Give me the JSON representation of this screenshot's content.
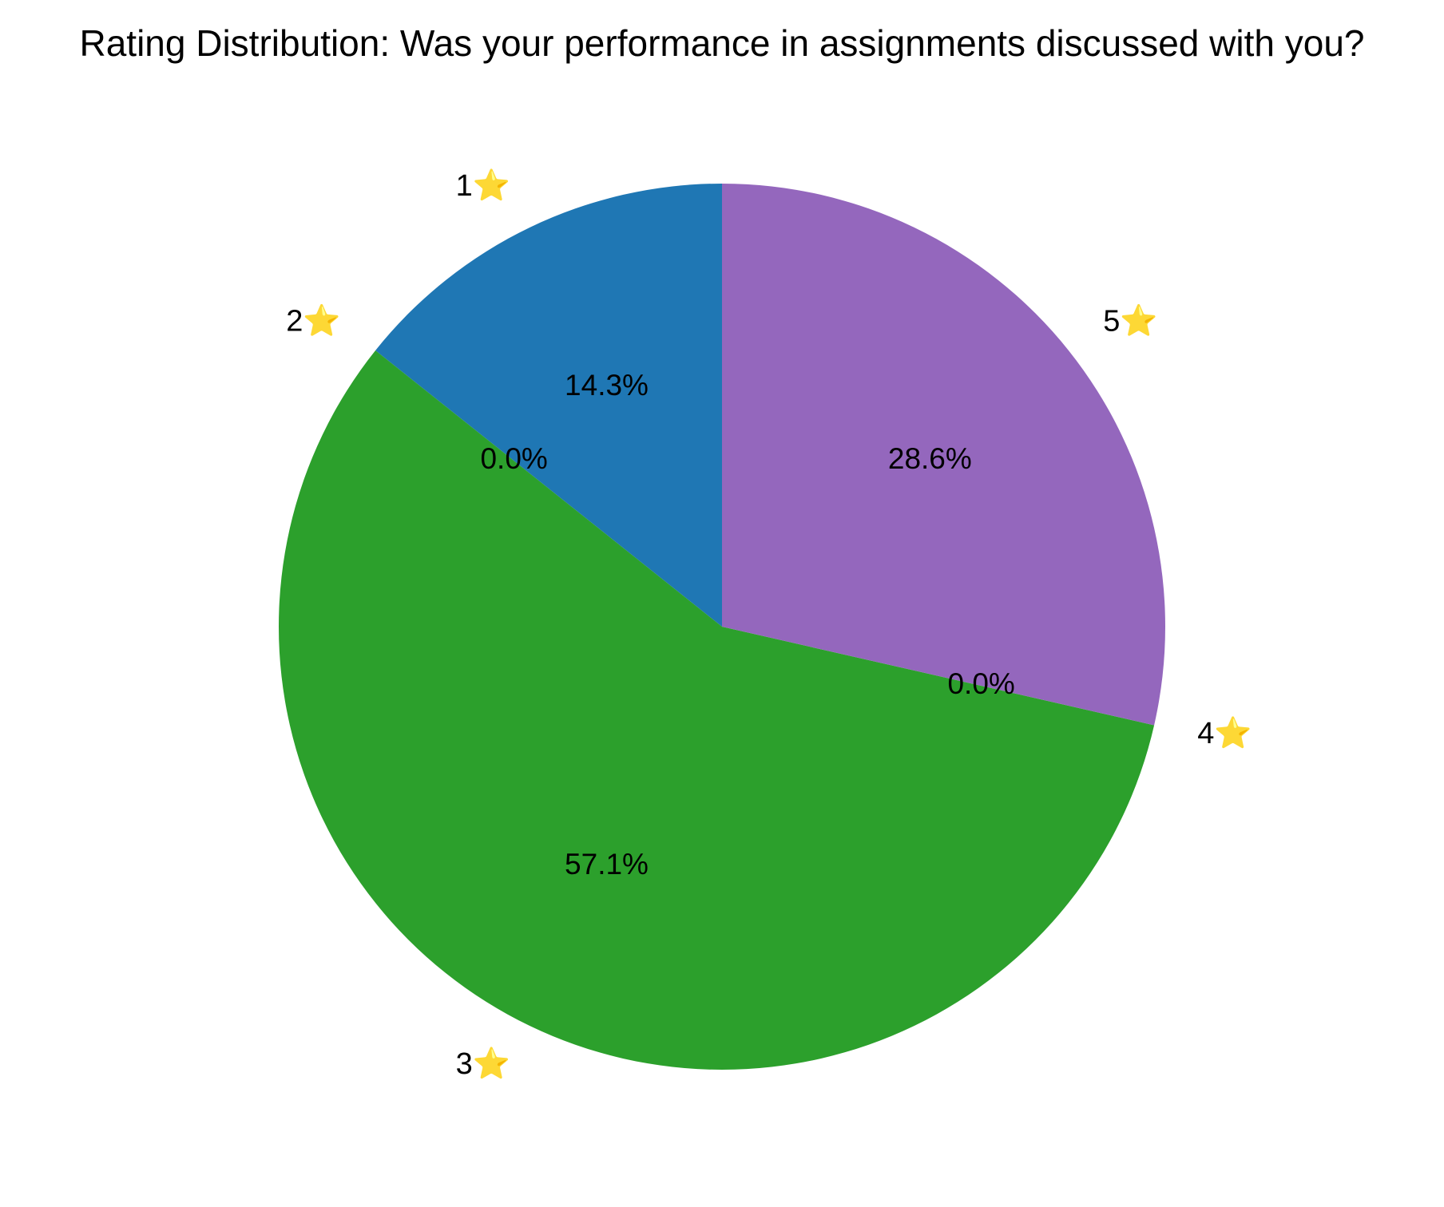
{
  "chart_data": {
    "type": "pie",
    "title": "Rating Distribution: Was your performance in assignments discussed with you?",
    "categories": [
      "1⭐",
      "2⭐",
      "3⭐",
      "4⭐",
      "5⭐"
    ],
    "values": [
      1,
      0,
      4,
      0,
      2
    ],
    "percent_labels": [
      "14.3%",
      "0.0%",
      "57.1%",
      "0.0%",
      "28.6%"
    ],
    "colors": [
      "#1f77b4",
      "#ff7f0e",
      "#2ca02c",
      "#d62728",
      "#9467bd"
    ],
    "start_angle_deg": 90,
    "direction": "counterclockwise",
    "legend": "none"
  }
}
